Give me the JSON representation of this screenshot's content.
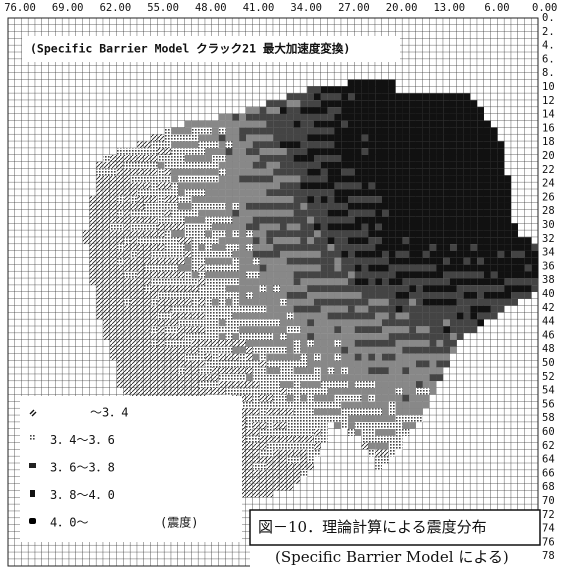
{
  "title": "(Specific Barrier Model クラック21 最大加速度変換)",
  "top_labels": [
    "76.00",
    "69.00",
    "62.00",
    "55.00",
    "48.00",
    "41.00",
    "34.00",
    "27.00",
    "20.00",
    "13.00",
    "6.00",
    "0.00"
  ],
  "right_labels": [
    "0.",
    "2.",
    "4.",
    "6.",
    "8.",
    "10",
    "12",
    "14",
    "16",
    "18",
    "20",
    "22",
    "24",
    "26",
    "28",
    "30",
    "32",
    "34",
    "36",
    "38",
    "40",
    "42",
    "44",
    "46",
    "48",
    "50",
    "52",
    "54",
    "56",
    "58",
    "60",
    "62",
    "64",
    "66",
    "68",
    "70",
    "72",
    "74",
    "76",
    "78"
  ],
  "legend": {
    "items": [
      "～3．4",
      "3．4～3．6",
      "3．6～3．8",
      "3．8～4．0",
      "4．0～"
    ],
    "unit": "(震度)"
  },
  "caption": {
    "line1": "図－10．理論計算による震度分布",
    "line2": "(Specific Barrier Model による)"
  }
}
